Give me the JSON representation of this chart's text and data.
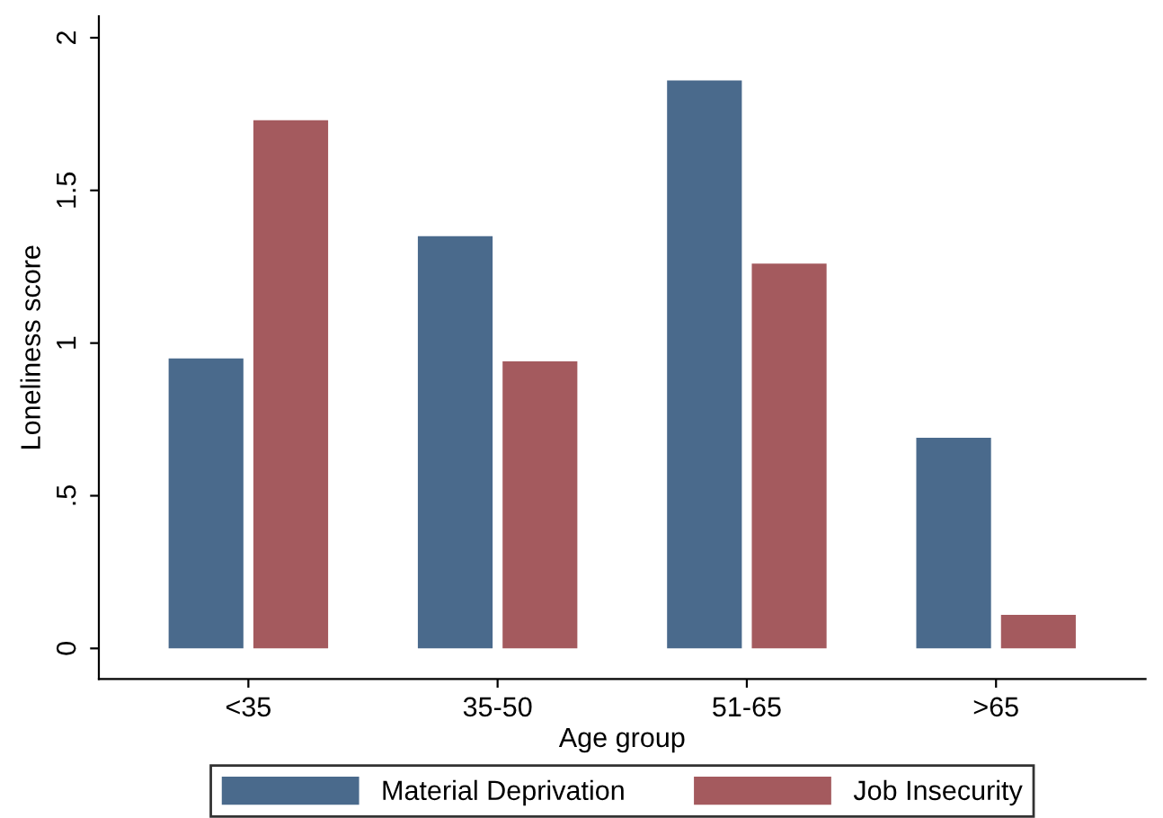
{
  "chart_data": {
    "type": "bar",
    "xlabel": "Age group",
    "ylabel": "Loneliness score",
    "categories": [
      "<35",
      "35-50",
      "51-65",
      ">65"
    ],
    "series": [
      {
        "name": "Material Deprivation",
        "color": "#4a6a8c",
        "values": [
          0.95,
          1.35,
          1.86,
          0.69
        ]
      },
      {
        "name": "Job Insecurity",
        "color": "#a45a5e",
        "values": [
          1.73,
          0.94,
          1.26,
          0.11
        ]
      }
    ],
    "ylim": [
      -0.1,
      2.07
    ],
    "yticks": [
      0,
      {
        "value": 0.5,
        "label": ".5"
      },
      1,
      1.5,
      2
    ],
    "grid": false,
    "legend": "bottom"
  }
}
